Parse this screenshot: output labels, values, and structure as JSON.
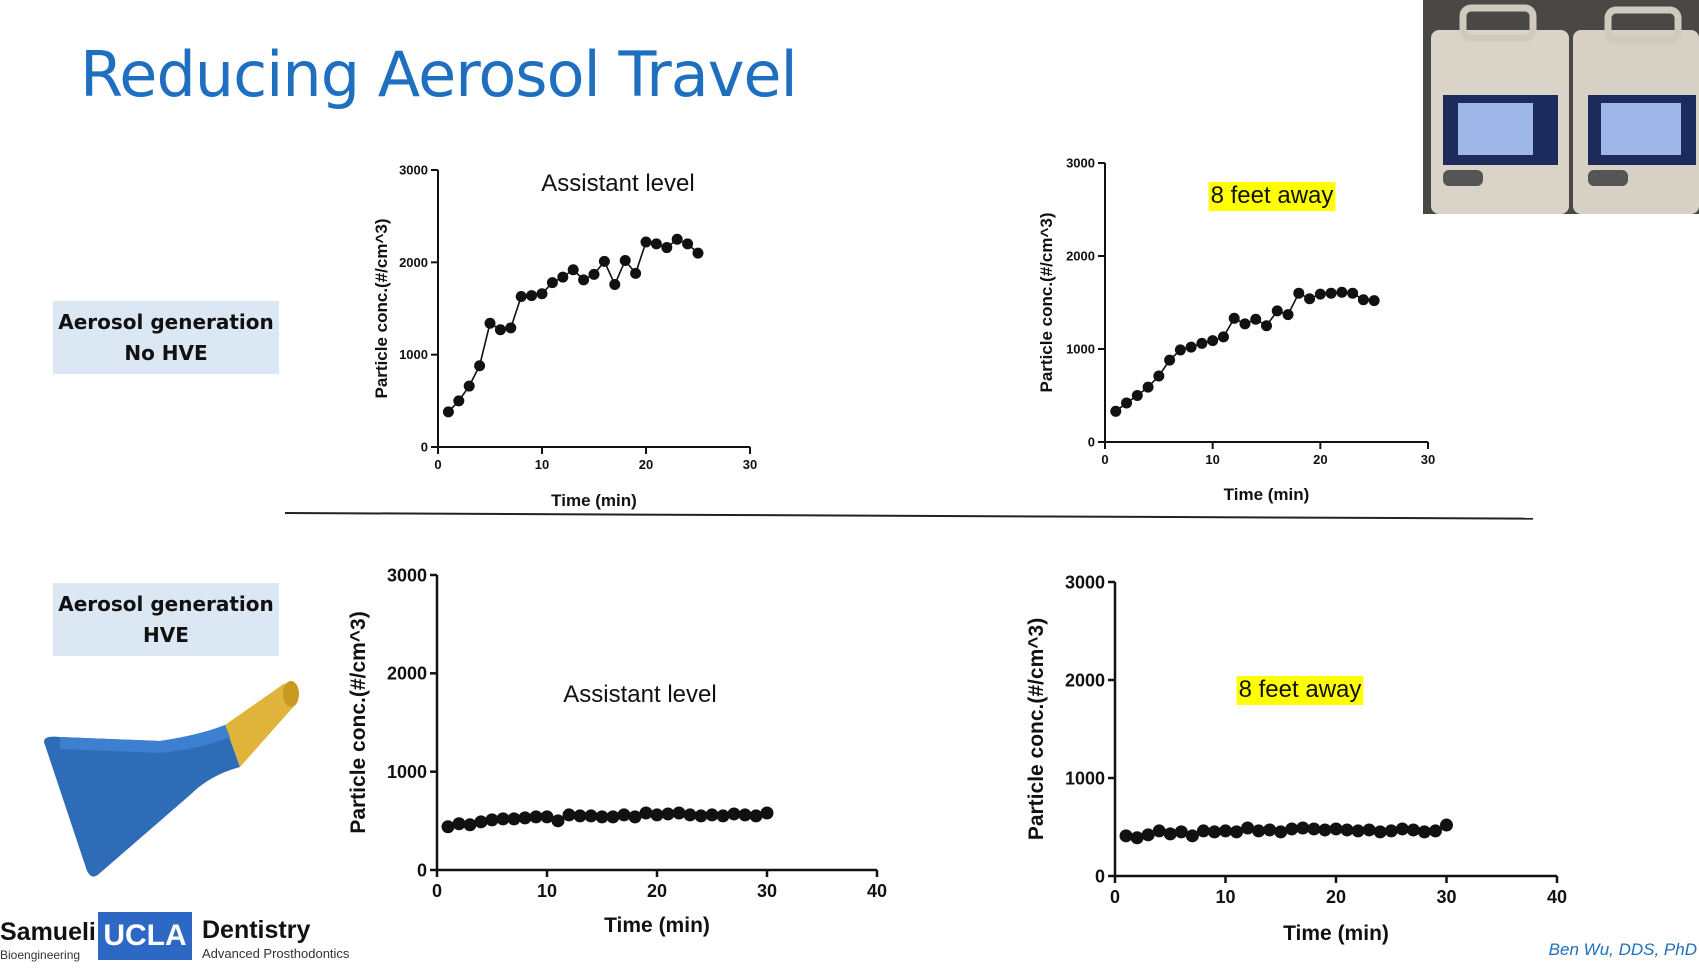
{
  "slide": {
    "title": "Reducing Aerosol Travel",
    "credit": "Ben Wu, DDS, PhD",
    "labels": [
      {
        "line1": "Aerosol generation",
        "line2": "No HVE"
      },
      {
        "line1": "Aerosol generation",
        "line2": "HVE"
      }
    ],
    "logo": {
      "samueli": "Samueli",
      "bioengineering": "Bioengineering",
      "ucla": "UCLA",
      "dentistry": "Dentistry",
      "advanced": "Advanced Prosthodontics"
    }
  },
  "colors": {
    "title": "#1f6fc0",
    "highlight": "#ffff00",
    "label_bg": "#dbe7f3",
    "ucla_blue": "#2d68c4"
  },
  "chart_data": [
    {
      "type": "line",
      "title": "Assistant level",
      "title_highlight": false,
      "xlabel": "Time (min)",
      "ylabel": "Particle conc.(#/cm^3)",
      "xlim": [
        0,
        30
      ],
      "ylim": [
        0,
        3000
      ],
      "xticks": [
        0,
        10,
        20,
        30
      ],
      "yticks": [
        0,
        1000,
        2000,
        3000
      ],
      "x": [
        1,
        2,
        3,
        4,
        5,
        6,
        7,
        8,
        9,
        10,
        11,
        12,
        13,
        14,
        15,
        16,
        17,
        18,
        19,
        20,
        21,
        22,
        23,
        24,
        25
      ],
      "y": [
        380,
        500,
        660,
        880,
        1340,
        1270,
        1290,
        1630,
        1640,
        1660,
        1780,
        1840,
        1920,
        1810,
        1870,
        2010,
        1760,
        2020,
        1880,
        2220,
        2200,
        2160,
        2250,
        2200,
        2100
      ]
    },
    {
      "type": "line",
      "title": "8 feet away",
      "title_highlight": true,
      "xlabel": "Time (min)",
      "ylabel": "Particle conc.(#/cm^3)",
      "xlim": [
        0,
        30
      ],
      "ylim": [
        0,
        3000
      ],
      "xticks": [
        0,
        10,
        20,
        30
      ],
      "yticks": [
        0,
        1000,
        2000,
        3000
      ],
      "x": [
        1,
        2,
        3,
        4,
        5,
        6,
        7,
        8,
        9,
        10,
        11,
        12,
        13,
        14,
        15,
        16,
        17,
        18,
        19,
        20,
        21,
        22,
        23,
        24,
        25
      ],
      "y": [
        330,
        420,
        500,
        590,
        710,
        880,
        990,
        1020,
        1060,
        1090,
        1130,
        1330,
        1270,
        1320,
        1250,
        1410,
        1370,
        1600,
        1540,
        1590,
        1600,
        1610,
        1600,
        1530,
        1520
      ]
    },
    {
      "type": "line",
      "title": "Assistant level",
      "title_highlight": false,
      "xlabel": "Time (min)",
      "ylabel": "Particle conc.(#/cm^3)",
      "xlim": [
        0,
        40
      ],
      "ylim": [
        0,
        3000
      ],
      "xticks": [
        0,
        10,
        20,
        30,
        40
      ],
      "yticks": [
        0,
        1000,
        2000,
        3000
      ],
      "x": [
        1,
        2,
        3,
        4,
        5,
        6,
        7,
        8,
        9,
        10,
        11,
        12,
        13,
        14,
        15,
        16,
        17,
        18,
        19,
        20,
        21,
        22,
        23,
        24,
        25,
        26,
        27,
        28,
        29,
        30
      ],
      "y": [
        440,
        470,
        460,
        490,
        510,
        520,
        520,
        530,
        540,
        540,
        500,
        560,
        550,
        550,
        540,
        540,
        560,
        540,
        580,
        560,
        570,
        580,
        560,
        550,
        560,
        550,
        570,
        560,
        550,
        580
      ]
    },
    {
      "type": "line",
      "title": "8 feet away",
      "title_highlight": true,
      "xlabel": "Time (min)",
      "ylabel": "Particle conc.(#/cm^3)",
      "xlim": [
        0,
        40
      ],
      "ylim": [
        0,
        3000
      ],
      "xticks": [
        0,
        10,
        20,
        30,
        40
      ],
      "yticks": [
        0,
        1000,
        2000,
        3000
      ],
      "x": [
        1,
        2,
        3,
        4,
        5,
        6,
        7,
        8,
        9,
        10,
        11,
        12,
        13,
        14,
        15,
        16,
        17,
        18,
        19,
        20,
        21,
        22,
        23,
        24,
        25,
        26,
        27,
        28,
        29,
        30
      ],
      "y": [
        410,
        390,
        420,
        460,
        430,
        450,
        410,
        460,
        450,
        460,
        450,
        490,
        460,
        470,
        450,
        480,
        490,
        480,
        470,
        480,
        470,
        460,
        470,
        450,
        460,
        480,
        470,
        450,
        460,
        520
      ]
    }
  ]
}
